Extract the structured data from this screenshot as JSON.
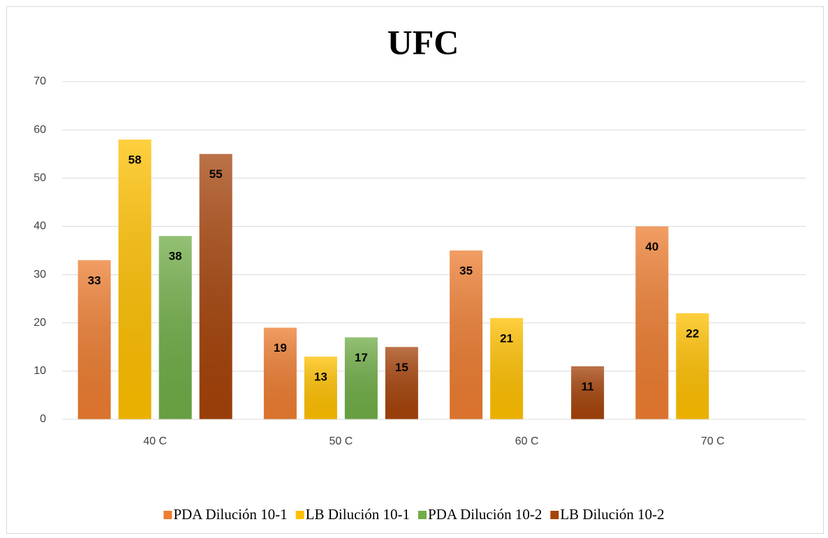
{
  "chart_data": {
    "type": "bar",
    "title": "UFC",
    "categories": [
      "40 C",
      "50 C",
      "60 C",
      "70 C"
    ],
    "series": [
      {
        "name": "PDA Dilución 10-1",
        "color": "#ed7d31",
        "values": [
          33,
          19,
          35,
          40
        ]
      },
      {
        "name": "LB Dilución 10-1",
        "color": "#ffc000",
        "values": [
          58,
          13,
          21,
          22
        ]
      },
      {
        "name": "PDA Dilución 10-2",
        "color": "#70ad47",
        "values": [
          38,
          17,
          null,
          null
        ]
      },
      {
        "name": "LB Dilución 10-2",
        "color": "#a5430a",
        "values": [
          55,
          15,
          11,
          null
        ]
      }
    ],
    "ylim": [
      0,
      70
    ],
    "yticks": [
      0,
      10,
      20,
      30,
      40,
      50,
      60,
      70
    ],
    "grid": true,
    "legend": "bottom"
  }
}
